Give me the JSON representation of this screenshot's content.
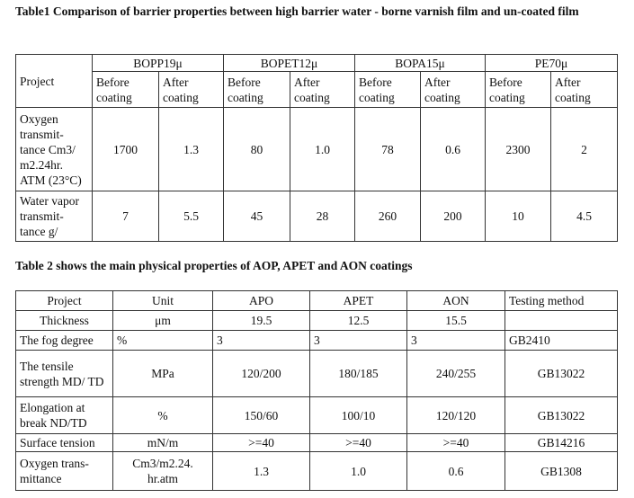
{
  "table1": {
    "title": "Table1 Comparison of barrier properties between high barrier water - borne varnish film and un-coated film",
    "project_label": "Project",
    "films": [
      "BOPP19μ",
      "BOPET12μ",
      "BOPA15μ",
      "PE70μ"
    ],
    "before_label": "Before coating",
    "after_label": "After coating",
    "rows": [
      {
        "label": "Oxygen transmit-tance Cm3/ m2.24hr. ATM (23°C)",
        "values": [
          "1700",
          "1.3",
          "80",
          "1.0",
          "78",
          "0.6",
          "2300",
          "2"
        ]
      },
      {
        "label": "Water vapor transmit-tance g/",
        "values": [
          "7",
          "5.5",
          "45",
          "28",
          "260",
          "200",
          "10",
          "4.5"
        ]
      }
    ]
  },
  "table2": {
    "title": "Table 2 shows the main physical properties of AOP, APET and AON coatings",
    "headers": [
      "Project",
      "Unit",
      "APO",
      "APET",
      "AON",
      "Testing method"
    ],
    "rows": [
      [
        "Thickness",
        "μm",
        "19.5",
        "12.5",
        "15.5",
        ""
      ],
      [
        "The fog degree",
        "%",
        "3",
        "3",
        "3",
        "GB2410"
      ],
      [
        "The tensile strength MD/ TD",
        "MPa",
        "120/200",
        "180/185",
        "240/255",
        "GB13022"
      ],
      [
        "Elongation at break ND/TD",
        "%",
        "150/60",
        "100/10",
        "120/120",
        "GB13022"
      ],
      [
        "Surface tension",
        "mN/m",
        ">=40",
        ">=40",
        ">=40",
        "GB14216"
      ],
      [
        "Oxygen trans-mittance",
        "Cm3/m2.24. hr.atm",
        "1.3",
        "1.0",
        "0.6",
        "GB1308"
      ]
    ]
  }
}
